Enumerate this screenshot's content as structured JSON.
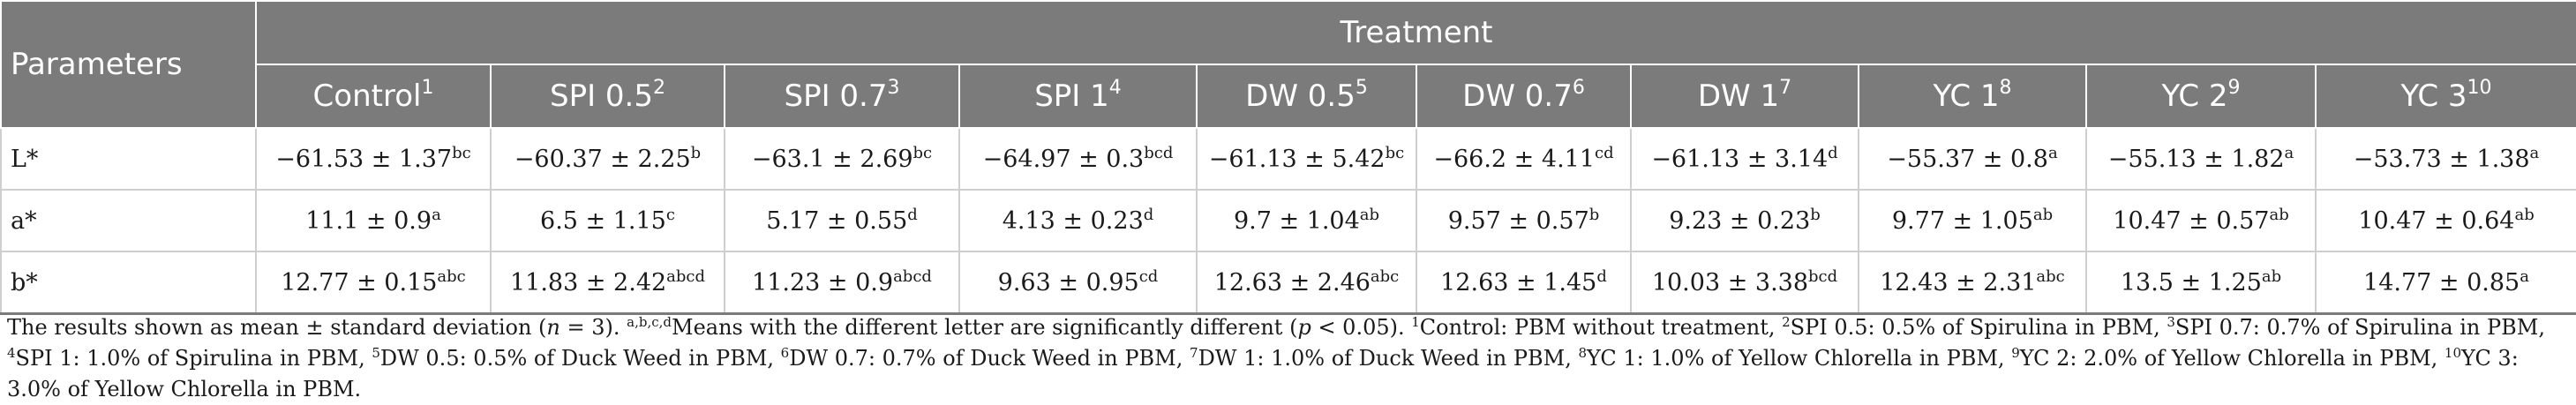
{
  "header": {
    "parameters_label": "Parameters",
    "treatment_label": "Treatment",
    "columns": [
      {
        "label": "Control",
        "sup": "1"
      },
      {
        "label": "SPI 0.5",
        "sup": "2"
      },
      {
        "label": "SPI 0.7",
        "sup": "3"
      },
      {
        "label": "SPI 1",
        "sup": "4"
      },
      {
        "label": "DW 0.5",
        "sup": "5"
      },
      {
        "label": "DW 0.7",
        "sup": "6"
      },
      {
        "label": "DW 1",
        "sup": "7"
      },
      {
        "label": "YC 1",
        "sup": "8"
      },
      {
        "label": "YC 2",
        "sup": "9"
      },
      {
        "label": "YC 3",
        "sup": "10"
      }
    ]
  },
  "rows": [
    {
      "param": "L*",
      "cells": [
        {
          "value": "−61.53 ± 1.37",
          "sup": "bc"
        },
        {
          "value": "−60.37 ± 2.25",
          "sup": "b"
        },
        {
          "value": "−63.1 ± 2.69",
          "sup": "bc"
        },
        {
          "value": "−64.97 ± 0.3",
          "sup": "bcd"
        },
        {
          "value": "−61.13 ± 5.42",
          "sup": "bc"
        },
        {
          "value": "−66.2 ± 4.11",
          "sup": "cd"
        },
        {
          "value": "−61.13 ± 3.14",
          "sup": "d"
        },
        {
          "value": "−55.37 ± 0.8",
          "sup": "a"
        },
        {
          "value": "−55.13 ± 1.82",
          "sup": "a"
        },
        {
          "value": "−53.73 ± 1.38",
          "sup": "a"
        }
      ]
    },
    {
      "param": "a*",
      "cells": [
        {
          "value": "11.1 ± 0.9",
          "sup": "a"
        },
        {
          "value": "6.5 ± 1.15",
          "sup": "c"
        },
        {
          "value": "5.17 ± 0.55",
          "sup": "d"
        },
        {
          "value": "4.13 ± 0.23",
          "sup": "d"
        },
        {
          "value": "9.7 ± 1.04",
          "sup": "ab"
        },
        {
          "value": "9.57 ± 0.57",
          "sup": "b"
        },
        {
          "value": "9.23 ± 0.23",
          "sup": "b"
        },
        {
          "value": "9.77 ± 1.05",
          "sup": "ab"
        },
        {
          "value": "10.47 ± 0.57",
          "sup": "ab"
        },
        {
          "value": "10.47 ± 0.64",
          "sup": "ab"
        }
      ]
    },
    {
      "param": "b*",
      "cells": [
        {
          "value": "12.77 ± 0.15",
          "sup": "abc"
        },
        {
          "value": "11.83 ± 2.42",
          "sup": "abcd"
        },
        {
          "value": "11.23 ± 0.9",
          "sup": "abcd"
        },
        {
          "value": "9.63 ± 0.95",
          "sup": "cd"
        },
        {
          "value": "12.63 ± 2.46",
          "sup": "abc"
        },
        {
          "value": "12.63 ± 1.45",
          "sup": "d"
        },
        {
          "value": "10.03 ± 3.38",
          "sup": "bcd"
        },
        {
          "value": "12.43 ± 2.31",
          "sup": "abc"
        },
        {
          "value": "13.5 ± 1.25",
          "sup": "ab"
        },
        {
          "value": "14.77 ± 0.85",
          "sup": "a"
        }
      ]
    }
  ],
  "footnote": {
    "intro": "The results shown as mean ± standard deviation (",
    "n_label": "n",
    "n_rest": " = 3). ",
    "letters_sup": "a,b,c,d",
    "letters_text": "Means with the different letter are significantly different (",
    "p_label": "p",
    "p_rest": " < 0.05). ",
    "defs": [
      {
        "sup": "1",
        "text": "Control: PBM without treatment, "
      },
      {
        "sup": "2",
        "text": "SPI 0.5: 0.5% of Spirulina in PBM, "
      },
      {
        "sup": "3",
        "text": "SPI 0.7: 0.7% of Spirulina in PBM, "
      },
      {
        "sup": "4",
        "text": "SPI 1: 1.0% of Spirulina in PBM, "
      },
      {
        "sup": "5",
        "text": "DW 0.5: 0.5% of Duck Weed in PBM, "
      },
      {
        "sup": "6",
        "text": "DW 0.7: 0.7% of Duck Weed in PBM, "
      },
      {
        "sup": "7",
        "text": "DW 1: 1.0% of Duck Weed in PBM, "
      },
      {
        "sup": "8",
        "text": "YC 1: 1.0% of Yellow Chlorella in PBM, "
      },
      {
        "sup": "9",
        "text": "YC 2: 2.0% of Yellow Chlorella in PBM, "
      },
      {
        "sup": "10",
        "text": "YC 3: 3.0% of Yellow Chlorella in PBM."
      }
    ]
  },
  "colors": {
    "header_bg": "#7b7b7b",
    "header_text": "#ffffff",
    "grid_line": "#cfcfcf",
    "body_text": "#1a1a1a"
  }
}
